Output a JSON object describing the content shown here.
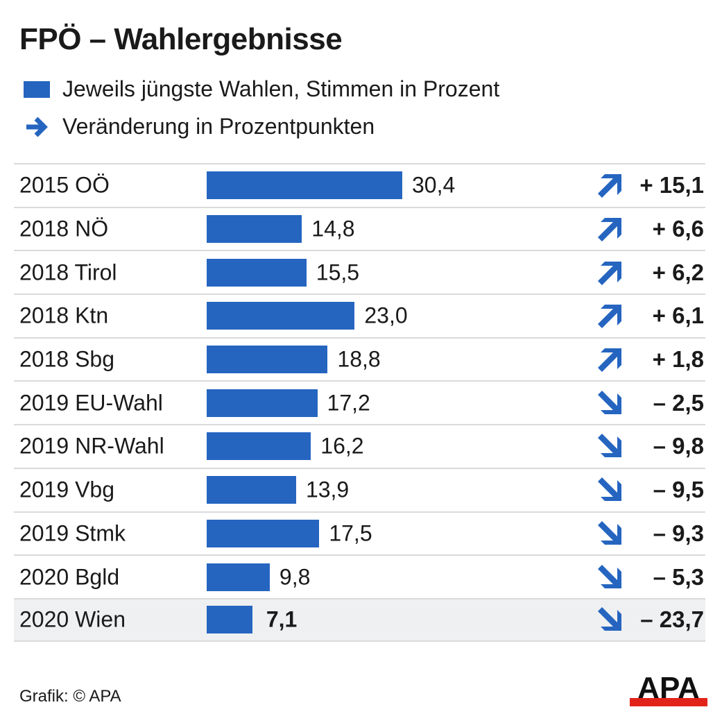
{
  "chart_data": {
    "type": "bar",
    "orientation": "horizontal",
    "title": "FPÖ – Wahlergebnisse",
    "legend": {
      "bar_label": "Jeweils jüngste Wahlen, Stimmen in Prozent",
      "arrow_label": "Veränderung in Prozentpunkten"
    },
    "categories": [
      "2015 OÖ",
      "2018 NÖ",
      "2018 Tirol",
      "2018 Ktn",
      "2018 Sbg",
      "2019 EU-Wahl",
      "2019 NR-Wahl",
      "2019 Vbg",
      "2019 Stmk",
      "2020 Bgld",
      "2020 Wien"
    ],
    "values": [
      30.4,
      14.8,
      15.5,
      23.0,
      18.8,
      17.2,
      16.2,
      13.9,
      17.5,
      9.8,
      7.1
    ],
    "value_labels": [
      "30,4",
      "14,8",
      "15,5",
      "23,0",
      "18,8",
      "17,2",
      "16,2",
      "13,9",
      "17,5",
      "9,8",
      "7,1"
    ],
    "changes": [
      15.1,
      6.6,
      6.2,
      6.1,
      1.8,
      -2.5,
      -9.8,
      -9.5,
      -9.3,
      -5.3,
      -23.7
    ],
    "change_labels": [
      "+ 15,1",
      "+ 6,6",
      "+ 6,2",
      "+ 6,1",
      "+ 1,8",
      "– 2,5",
      "– 9,8",
      "– 9,5",
      "– 9,3",
      "– 5,3",
      "– 23,7"
    ],
    "highlight_index": 10,
    "xlim": [
      0,
      30.4
    ],
    "grid": false
  },
  "colors": {
    "bar": "#2565c0",
    "logo_red": "#e2231a",
    "highlight_bg": "#eff0f1"
  },
  "footer": {
    "source": "Grafik: © APA",
    "logo": "APA"
  }
}
